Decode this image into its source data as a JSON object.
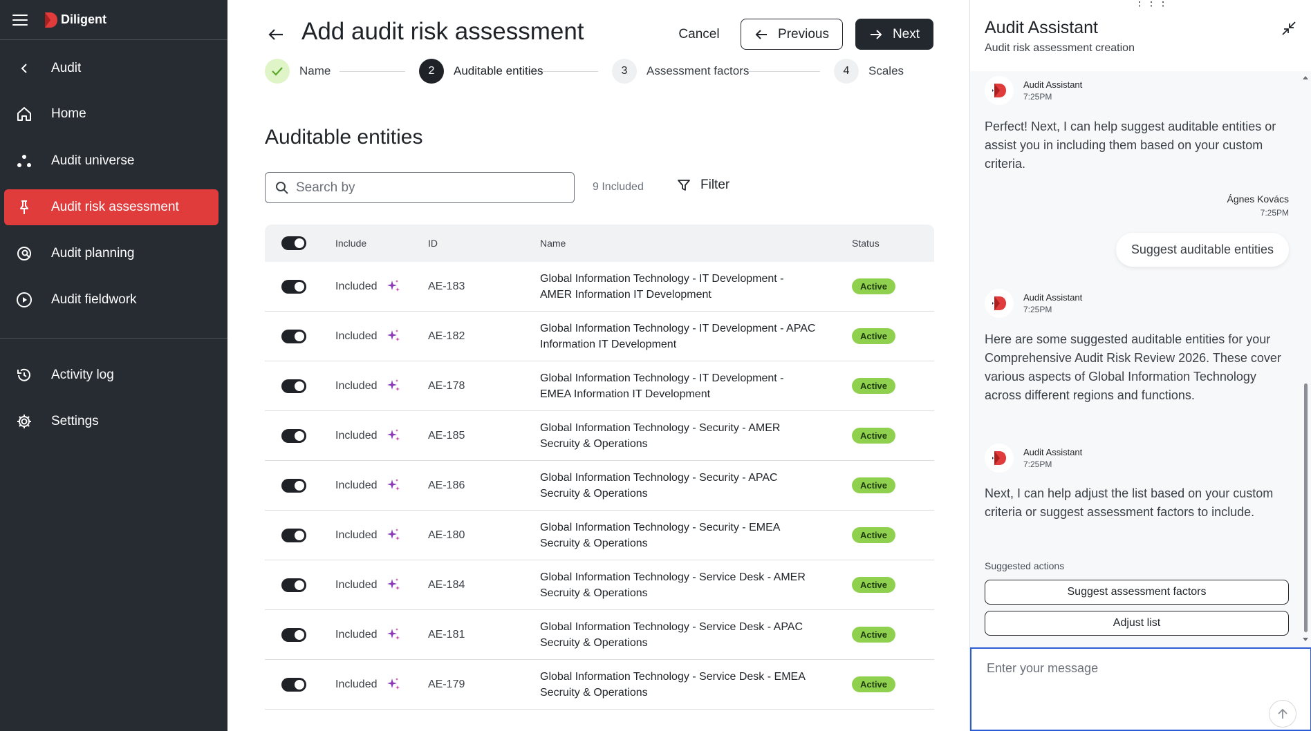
{
  "app": {
    "brand": "Diligent",
    "accent_color": "#e03c3c",
    "sidebar_bg": "#272c33"
  },
  "sidebar": {
    "back_label": "Audit",
    "items": [
      {
        "label": "Home",
        "icon": "home-icon"
      },
      {
        "label": "Audit universe",
        "icon": "universe-icon"
      },
      {
        "label": "Audit risk assessment",
        "icon": "pin-icon",
        "active": true
      },
      {
        "label": "Audit planning",
        "icon": "search-doc-icon"
      },
      {
        "label": "Audit fieldwork",
        "icon": "play-circle-icon"
      }
    ],
    "bottom_items": [
      {
        "label": "Activity log",
        "icon": "history-icon"
      },
      {
        "label": "Settings",
        "icon": "gear-icon"
      }
    ]
  },
  "header": {
    "title": "Add audit risk assessment",
    "cancel_label": "Cancel",
    "previous_label": "Previous",
    "next_label": "Next"
  },
  "stepper": [
    {
      "label": "Name",
      "state": "done"
    },
    {
      "number": "2",
      "label": "Auditable entities",
      "state": "active"
    },
    {
      "number": "3",
      "label": "Assessment factors",
      "state": "pending"
    },
    {
      "number": "4",
      "label": "Scales",
      "state": "pending"
    }
  ],
  "section": {
    "title": "Auditable entities",
    "search_placeholder": "Search by",
    "included_count": "9 Included",
    "filter_label": "Filter"
  },
  "table": {
    "columns": [
      "Include",
      "ID",
      "Name",
      "Status"
    ],
    "rows": [
      {
        "include": "Included",
        "id": "AE-183",
        "name": "Global Information Technology - IT Development - AMER Information  IT Development",
        "status": "Active"
      },
      {
        "include": "Included",
        "id": "AE-182",
        "name": "Global Information Technology - IT Development - APAC  Information  IT Development",
        "status": "Active"
      },
      {
        "include": "Included",
        "id": "AE-178",
        "name": "Global Information Technology - IT Development - EMEA Information IT Development",
        "status": "Active"
      },
      {
        "include": "Included",
        "id": "AE-185",
        "name": "Global Information Technology - Security - AMER Secruity & Operations",
        "status": "Active"
      },
      {
        "include": "Included",
        "id": "AE-186",
        "name": "Global Information Technology - Security - APAC Secruity & Operations",
        "status": "Active"
      },
      {
        "include": "Included",
        "id": "AE-180",
        "name": "Global Information Technology - Security - EMEA Secruity & Operations",
        "status": "Active"
      },
      {
        "include": "Included",
        "id": "AE-184",
        "name": "Global Information Technology - Service Desk - AMER Secruity & Operations",
        "status": "Active"
      },
      {
        "include": "Included",
        "id": "AE-181",
        "name": "Global Information Technology - Service Desk - APAC Secruity & Operations",
        "status": "Active"
      },
      {
        "include": "Included",
        "id": "AE-179",
        "name": "Global Information Technology - Service Desk - EMEA Secruity & Operations",
        "status": "Active"
      }
    ]
  },
  "assistant": {
    "title": "Audit Assistant",
    "subtitle": "Audit risk assessment creation",
    "messages": [
      {
        "author": "Audit Assistant",
        "time": "7:25PM",
        "text": "Perfect! Next, I can help suggest auditable entities or assist you in including them based on your custom criteria."
      },
      {
        "author": "Ágnes Kovács",
        "time": "7:25PM",
        "text": "Suggest auditable entities"
      },
      {
        "author": "Audit Assistant",
        "time": "7:25PM",
        "text": "Here are some suggested auditable entities for your Comprehensive Audit Risk Review 2026. These cover various aspects of Global Information Technology across different regions and functions."
      },
      {
        "author": "Audit Assistant",
        "time": "7:25PM",
        "text": "Next, I can help adjust the list based on your custom criteria or suggest assessment factors to include."
      }
    ],
    "suggested_label": "Suggested actions",
    "actions": [
      "Suggest assessment factors",
      "Adjust list"
    ],
    "input_placeholder": "Enter your message"
  }
}
